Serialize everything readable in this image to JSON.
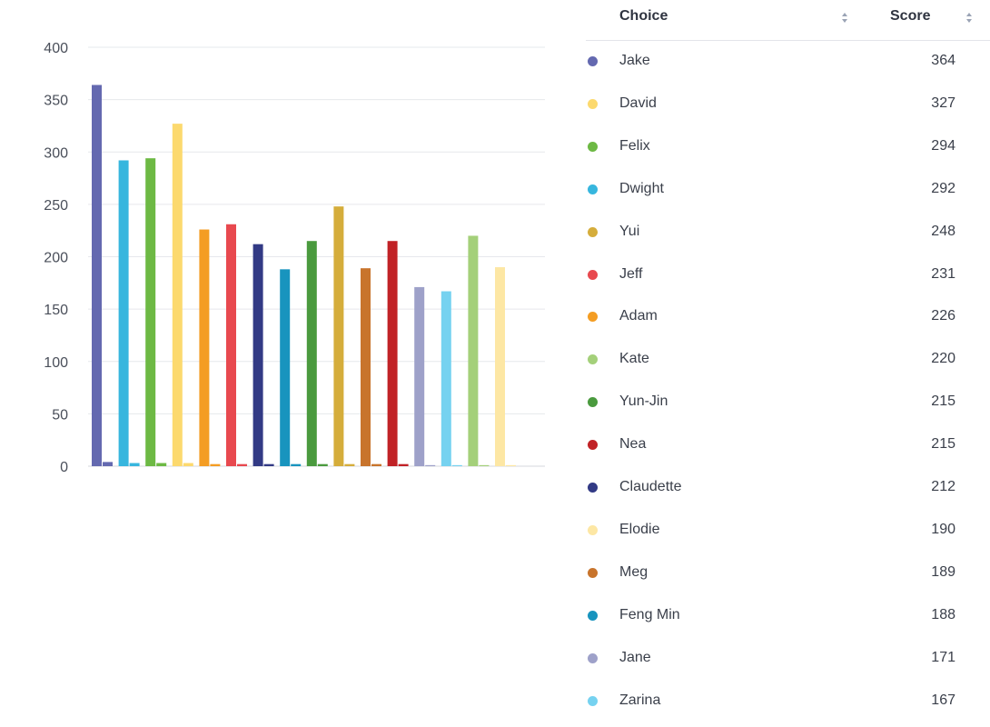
{
  "chart_data": {
    "type": "bar",
    "categories": [
      "Jake",
      "Dwight",
      "Felix",
      "David",
      "Adam",
      "Jeff",
      "Claudette",
      "Feng Min",
      "Yun-Jin",
      "Yui",
      "Meg",
      "Nea",
      "Jane",
      "Zarina",
      "Kate",
      "Elodie"
    ],
    "series": [
      {
        "values": [
          364,
          292,
          294,
          327,
          226,
          231,
          212,
          188,
          215,
          248,
          189,
          215,
          171,
          167,
          220,
          190
        ]
      },
      {
        "values": [
          4,
          3,
          3,
          3,
          2,
          2,
          2,
          2,
          2,
          2,
          2,
          2,
          1,
          1,
          1,
          1
        ]
      }
    ],
    "colors": [
      "#6469b0",
      "#37b6de",
      "#6db944",
      "#fcd96e",
      "#f49d23",
      "#e8494f",
      "#323a85",
      "#1894be",
      "#4a9a3e",
      "#d5ad3b",
      "#c8742c",
      "#c12226",
      "#9ea1c9",
      "#76d2f0",
      "#a4d07a",
      "#fde7a4"
    ],
    "ylim": [
      0,
      400
    ],
    "yticks": [
      "0",
      "50",
      "100",
      "150",
      "200",
      "250",
      "300",
      "350",
      "400"
    ],
    "grid": true,
    "xlabel": "",
    "ylabel": ""
  },
  "table": {
    "headers": {
      "choice": "Choice",
      "score": "Score"
    },
    "rows": [
      {
        "name": "Jake",
        "score": "364",
        "color": "#6469b0"
      },
      {
        "name": "David",
        "score": "327",
        "color": "#fcd96e"
      },
      {
        "name": "Felix",
        "score": "294",
        "color": "#6db944"
      },
      {
        "name": "Dwight",
        "score": "292",
        "color": "#37b6de"
      },
      {
        "name": "Yui",
        "score": "248",
        "color": "#d5ad3b"
      },
      {
        "name": "Jeff",
        "score": "231",
        "color": "#e8494f"
      },
      {
        "name": "Adam",
        "score": "226",
        "color": "#f49d23"
      },
      {
        "name": "Kate",
        "score": "220",
        "color": "#a4d07a"
      },
      {
        "name": "Yun-Jin",
        "score": "215",
        "color": "#4a9a3e"
      },
      {
        "name": "Nea",
        "score": "215",
        "color": "#c12226"
      },
      {
        "name": "Claudette",
        "score": "212",
        "color": "#323a85"
      },
      {
        "name": "Elodie",
        "score": "190",
        "color": "#fde7a4"
      },
      {
        "name": "Meg",
        "score": "189",
        "color": "#c8742c"
      },
      {
        "name": "Feng Min",
        "score": "188",
        "color": "#1894be"
      },
      {
        "name": "Jane",
        "score": "171",
        "color": "#9ea1c9"
      },
      {
        "name": "Zarina",
        "score": "167",
        "color": "#76d2f0"
      }
    ]
  }
}
